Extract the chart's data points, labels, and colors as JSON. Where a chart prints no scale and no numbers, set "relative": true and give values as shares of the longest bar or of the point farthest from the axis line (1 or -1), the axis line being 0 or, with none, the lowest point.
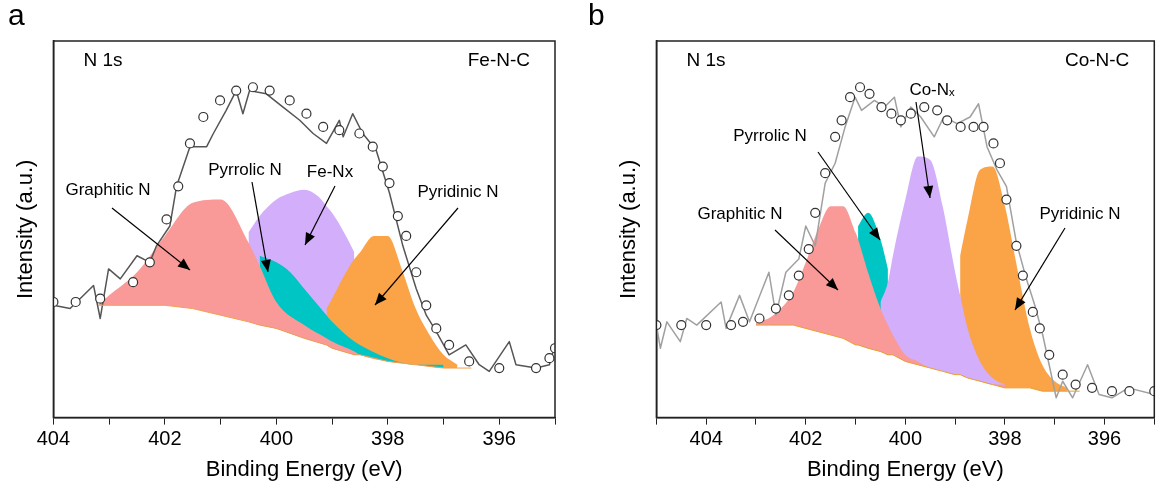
{
  "chart_data": [
    {
      "type": "area",
      "title": "a",
      "annotations": [
        "N 1s",
        "Fe-N-C"
      ],
      "xlabel": "Binding Energy (eV)",
      "ylabel": "Intensity (a.u.)",
      "relative": true,
      "grid": false,
      "xlim": [
        404,
        395
      ],
      "xticks": [
        404,
        {
          "value": 403,
          "label": null
        },
        402,
        {
          "value": 401,
          "label": null
        },
        400,
        {
          "value": 399,
          "label": null
        },
        398,
        {
          "value": 397,
          "label": null
        },
        396,
        {
          "value": 395,
          "label": null
        }
      ],
      "x": [
        403.2,
        403,
        402.5,
        402,
        401.5,
        401,
        400.5,
        400.3,
        400,
        399.5,
        399.1,
        399,
        398.6,
        398.5,
        398,
        397.5,
        397,
        396.75,
        396.5
      ],
      "series": [
        {
          "type": "line",
          "color": "#f0a050",
          "values": [
            0.34,
            0.34,
            0.34,
            0.34,
            0.33,
            0.31,
            0.29,
            0.28,
            0.27,
            0.24,
            0.22,
            0.21,
            0.19,
            0.19,
            0.17,
            0.16,
            0.15,
            0.15,
            0.15
          ]
        },
        {
          "name": "Fe-Nx",
          "color": "#d3aefb",
          "x": [
            400.5,
            400.3,
            400,
            399.75,
            399.5,
            399.25,
            399.1,
            399,
            398.75,
            398.6
          ],
          "values": [
            0.56,
            0.61,
            0.66,
            0.68,
            0.69,
            0.67,
            0.64,
            0.62,
            0.55,
            0.5
          ]
        },
        {
          "name": "Pyridinic N",
          "color": "#fba347",
          "x": [
            399.1,
            399,
            398.75,
            398.6,
            398.5,
            398.25,
            398,
            397.75,
            397.5,
            397.25,
            397,
            396.75
          ],
          "values": [
            0.33,
            0.36,
            0.44,
            0.48,
            0.5,
            0.55,
            0.55,
            0.45,
            0.33,
            0.25,
            0.19,
            0.16
          ]
        },
        {
          "name": "Pyrrolic N",
          "color": "#00c5c5",
          "x": [
            400.3,
            400,
            399.75,
            399.5,
            399.25,
            399.1,
            399,
            398.6,
            398.5,
            398,
            397.5,
            397
          ],
          "values": [
            0.49,
            0.47,
            0.44,
            0.39,
            0.34,
            0.31,
            0.29,
            0.23,
            0.22,
            0.18,
            0.16,
            0.16
          ]
        },
        {
          "name": "Graphitic N",
          "color": "#f99a98",
          "values": [
            0.34,
            0.37,
            0.44,
            0.55,
            0.65,
            0.66,
            0.53,
            0.46,
            0.35,
            0.28,
            0.24,
            0.23,
            0.2,
            0.19,
            0.17,
            0.16,
            0.15,
            0.15,
            0.15
          ]
        },
        {
          "type": "line",
          "color": "#555555",
          "x": [
            404,
            403.7,
            403.28,
            403.16,
            403.01,
            402.8,
            402.5,
            402.27,
            402.15,
            401.91,
            401.79,
            401.55,
            401.25,
            401.13,
            400.9,
            400.72,
            400.6,
            400.48,
            400.18,
            399.88,
            399.58,
            399.34,
            399.1,
            398.87,
            398.8,
            398.63,
            398.45,
            398.21,
            397.97,
            397.73,
            397.49,
            397.31,
            397.13,
            396.9,
            396.6,
            396.36,
            396.18,
            395.82,
            395.7,
            395.34,
            395.1,
            395
          ],
          "values": [
            0.34,
            0.33,
            0.4,
            0.3,
            0.45,
            0.42,
            0.49,
            0.47,
            0.52,
            0.58,
            0.7,
            0.82,
            0.82,
            0.86,
            0.93,
            0.99,
            0.92,
            0.99,
            0.98,
            0.94,
            0.9,
            0.86,
            0.83,
            0.9,
            0.85,
            0.92,
            0.86,
            0.81,
            0.68,
            0.52,
            0.39,
            0.31,
            0.26,
            0.19,
            0.22,
            0.16,
            0.14,
            0.23,
            0.16,
            0.15,
            0.16,
            0.22
          ]
        },
        {
          "type": "scatter",
          "marker": "circle",
          "color": "#333333",
          "x": [
            404,
            403.6,
            403.16,
            402.57,
            402.27,
            401.97,
            401.76,
            401.55,
            401.31,
            401.01,
            400.72,
            400.42,
            400.12,
            399.76,
            399.46,
            399.16,
            398.87,
            398.51,
            398.27,
            398.09,
            397.97,
            397.82,
            397.67,
            397.49,
            397.31,
            397.13,
            396.9,
            396.54,
            396,
            395.34,
            395.1,
            395
          ],
          "values": [
            0.35,
            0.35,
            0.36,
            0.41,
            0.47,
            0.6,
            0.7,
            0.83,
            0.91,
            0.96,
            0.99,
            1,
            0.99,
            0.96,
            0.92,
            0.88,
            0.87,
            0.86,
            0.82,
            0.76,
            0.71,
            0.61,
            0.55,
            0.44,
            0.34,
            0.27,
            0.22,
            0.17,
            0.15,
            0.15,
            0.18,
            0.21
          ]
        }
      ]
    },
    {
      "type": "area",
      "title": "b",
      "annotations": [
        "N 1s",
        "Co-N-C"
      ],
      "xlabel": "Binding Energy (eV)",
      "ylabel": "Intensity (a.u.)",
      "relative": true,
      "grid": false,
      "xlim": [
        405,
        395
      ],
      "xticks": [
        {
          "value": 405,
          "label": null
        },
        404,
        {
          "value": 403,
          "label": null
        },
        402,
        {
          "value": 401,
          "label": null
        },
        400,
        {
          "value": 399,
          "label": null
        },
        398,
        {
          "value": 397,
          "label": null
        },
        396,
        {
          "value": 395,
          "label": null
        }
      ],
      "x": [
        403,
        402.75,
        402.5,
        402.25,
        402,
        401.75,
        401.5,
        401.25,
        401,
        400.95,
        400.75,
        400.5,
        400.35,
        400.25,
        400,
        399.75,
        399.5,
        399.25,
        399,
        398.9,
        398.75,
        398.5,
        398.25,
        398
      ],
      "series": [
        {
          "type": "line",
          "color": "#e8a030",
          "x": [
            403,
            402.75,
            402.5,
            402.25,
            402,
            401.75,
            401.5,
            401.25,
            401,
            400.95,
            400.75,
            400.5,
            400.35,
            400.25,
            400,
            399.75,
            399.5,
            399.25,
            399,
            398.9,
            398.75,
            398.5,
            398.25,
            398,
            397.75,
            397.5,
            397.25,
            397,
            396.75,
            396.5
          ],
          "values": [
            0.28,
            0.28,
            0.28,
            0.28,
            0.27,
            0.26,
            0.25,
            0.24,
            0.22,
            0.22,
            0.21,
            0.2,
            0.19,
            0.19,
            0.17,
            0.16,
            0.15,
            0.14,
            0.13,
            0.13,
            0.12,
            0.11,
            0.1,
            0.09,
            0.09,
            0.09,
            0.08,
            0.08,
            0.08,
            0.08
          ]
        },
        {
          "name": "Pyrrolic N",
          "color": "#00c5c5",
          "x": [
            400.95,
            400.75,
            400.5,
            400.35
          ],
          "values": [
            0.58,
            0.62,
            0.54,
            0.45
          ]
        },
        {
          "name": "Pyridinic N",
          "color": "#fba347",
          "x": [
            398.9,
            398.75,
            398.5,
            398.25,
            398,
            397.75,
            397.5,
            397.25,
            397,
            396.75
          ],
          "values": [
            0.49,
            0.6,
            0.75,
            0.76,
            0.64,
            0.45,
            0.27,
            0.16,
            0.11,
            0.09
          ]
        },
        {
          "name": "Co-Nₓ",
          "color": "#d3aefb",
          "x": [
            400.5,
            400.35,
            400.25,
            400,
            399.75,
            399.5,
            399.25,
            399,
            398.9,
            398.75,
            398.5,
            398.25,
            398
          ],
          "values": [
            0.35,
            0.41,
            0.49,
            0.66,
            0.79,
            0.78,
            0.64,
            0.44,
            0.37,
            0.27,
            0.17,
            0.12,
            0.1
          ]
        },
        {
          "name": "Graphitic N",
          "color": "#f99a98",
          "values": [
            0.29,
            0.3,
            0.33,
            0.38,
            0.47,
            0.57,
            0.64,
            0.64,
            0.56,
            0.54,
            0.44,
            0.33,
            0.28,
            0.25,
            0.19,
            0.17,
            0.15,
            0.14,
            0.13,
            0.13,
            0.12,
            0.11,
            0.1,
            0.1
          ]
        },
        {
          "type": "line",
          "color": "#a0a0a0",
          "x": [
            405,
            404.92,
            404.79,
            404.52,
            404.39,
            404.19,
            403.7,
            403.6,
            403.33,
            403.13,
            402.74,
            402.6,
            402.4,
            402.14,
            402,
            401.81,
            401.61,
            401.41,
            401.21,
            401.01,
            400.88,
            400.62,
            400.42,
            400.22,
            400.09,
            399.89,
            399.69,
            399.42,
            399.23,
            398.96,
            398.7,
            398.53,
            398.36,
            398.16,
            397.97,
            397.77,
            397.57,
            397.4,
            397.24,
            396.97,
            396.84,
            396.64,
            396.34,
            396.11,
            395.85,
            395.52,
            395
          ],
          "values": [
            0.28,
            0.21,
            0.29,
            0.23,
            0.3,
            0.28,
            0.35,
            0.27,
            0.37,
            0.29,
            0.44,
            0.31,
            0.44,
            0.48,
            0.58,
            0.52,
            0.71,
            0.77,
            0.88,
            0.97,
            0.93,
            0.96,
            0.94,
            0.97,
            0.88,
            0.94,
            0.91,
            0.85,
            0.91,
            0.89,
            0.91,
            0.95,
            0.82,
            0.75,
            0.7,
            0.53,
            0.42,
            0.34,
            0.25,
            0.06,
            0.11,
            0.06,
            0.16,
            0.07,
            0.06,
            0.09,
            0.07
          ]
        },
        {
          "type": "scatter",
          "marker": "circle",
          "color": "#333333",
          "x": [
            405,
            404.5,
            404,
            403.5,
            403.26,
            402.93,
            402.6,
            402.34,
            402.14,
            401.94,
            401.81,
            401.61,
            401.41,
            401.28,
            401.11,
            400.91,
            400.72,
            400.48,
            400.28,
            400.09,
            399.89,
            399.62,
            399.36,
            399.16,
            398.89,
            398.63,
            398.43,
            398.23,
            398.1,
            397.97,
            397.77,
            397.64,
            397.44,
            397.3,
            397.11,
            396.84,
            396.58,
            396.25,
            395.85,
            395.5,
            395
          ],
          "values": [
            0.28,
            0.28,
            0.28,
            0.28,
            0.29,
            0.3,
            0.33,
            0.37,
            0.43,
            0.51,
            0.62,
            0.74,
            0.85,
            0.9,
            0.97,
            1,
            0.98,
            0.94,
            0.92,
            0.9,
            0.92,
            0.94,
            0.93,
            0.9,
            0.88,
            0.88,
            0.88,
            0.83,
            0.77,
            0.66,
            0.52,
            0.43,
            0.32,
            0.27,
            0.19,
            0.13,
            0.1,
            0.09,
            0.08,
            0.08,
            0.08
          ]
        }
      ]
    }
  ]
}
